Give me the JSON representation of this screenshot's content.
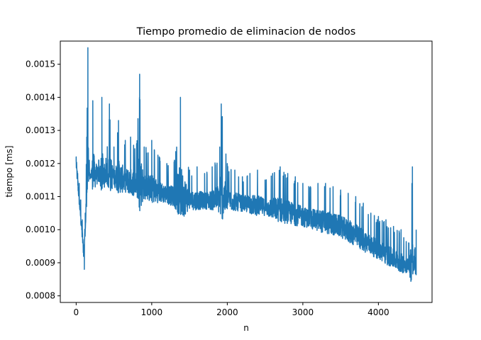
{
  "chart_data": {
    "type": "line",
    "title": "Tiempo promedio de eliminacion de nodos",
    "xlabel": "n",
    "ylabel": "tiempo [ms]",
    "xlim": [
      -210,
      4710
    ],
    "ylim": [
      0.00078,
      0.00157
    ],
    "xticks": [
      0,
      1000,
      2000,
      3000,
      4000
    ],
    "xtick_labels": [
      "0",
      "1000",
      "2000",
      "3000",
      "4000"
    ],
    "yticks": [
      0.0008,
      0.0009,
      0.001,
      0.0011,
      0.0012,
      0.0013,
      0.0014,
      0.0015
    ],
    "ytick_labels": [
      "0.0008",
      "0.0009",
      "0.0010",
      "0.0011",
      "0.0012",
      "0.0013",
      "0.0014",
      "0.0015"
    ],
    "grid": false,
    "series": [
      {
        "color": "#1f77b4",
        "x_range": [
          0,
          4500
        ],
        "points": [
          [
            0,
            0.00122
          ],
          [
            20,
            0.00117
          ],
          [
            40,
            0.00114
          ],
          [
            60,
            0.00109
          ],
          [
            80,
            0.00103
          ],
          [
            100,
            0.00094
          ],
          [
            108,
            0.00088
          ],
          [
            120,
            0.00105
          ],
          [
            140,
            0.00128
          ],
          [
            155,
            0.00155
          ],
          [
            175,
            0.0012
          ],
          [
            200,
            0.00118
          ],
          [
            220,
            0.00139
          ],
          [
            300,
            0.00121
          ],
          [
            340,
            0.0014
          ],
          [
            400,
            0.0012
          ],
          [
            440,
            0.00138
          ],
          [
            500,
            0.00125
          ],
          [
            560,
            0.00133
          ],
          [
            650,
            0.00127
          ],
          [
            720,
            0.00128
          ],
          [
            800,
            0.00126
          ],
          [
            840,
            0.00147
          ],
          [
            900,
            0.00125
          ],
          [
            1000,
            0.00127
          ],
          [
            1100,
            0.00122
          ],
          [
            1200,
            0.0012
          ],
          [
            1300,
            0.00121
          ],
          [
            1380,
            0.0014
          ],
          [
            1500,
            0.00118
          ],
          [
            1600,
            0.00119
          ],
          [
            1700,
            0.00117
          ],
          [
            1800,
            0.00119
          ],
          [
            1900,
            0.00125
          ],
          [
            1920,
            0.00138
          ],
          [
            2000,
            0.0012
          ],
          [
            2100,
            0.00118
          ],
          [
            2200,
            0.00116
          ],
          [
            2300,
            0.00117
          ],
          [
            2400,
            0.00118
          ],
          [
            2500,
            0.00115
          ],
          [
            2600,
            0.00117
          ],
          [
            2700,
            0.00119
          ],
          [
            2800,
            0.00117
          ],
          [
            2900,
            0.00116
          ],
          [
            3000,
            0.00114
          ],
          [
            3100,
            0.00113
          ],
          [
            3200,
            0.00114
          ],
          [
            3300,
            0.00114
          ],
          [
            3400,
            0.00113
          ],
          [
            3500,
            0.00112
          ],
          [
            3600,
            0.00111
          ],
          [
            3700,
            0.0011
          ],
          [
            3800,
            0.00108
          ],
          [
            3900,
            0.00105
          ],
          [
            4000,
            0.00104
          ],
          [
            4100,
            0.00103
          ],
          [
            4200,
            0.00101
          ],
          [
            4300,
            0.001
          ],
          [
            4400,
            0.00096
          ],
          [
            4450,
            0.00119
          ],
          [
            4470,
            0.00092
          ],
          [
            4500,
            0.001
          ]
        ],
        "baseline": [
          [
            0,
            0.0012
          ],
          [
            100,
            0.00093
          ],
          [
            160,
            0.00116
          ],
          [
            500,
            0.00115
          ],
          [
            1000,
            0.00111
          ],
          [
            1500,
            0.00108
          ],
          [
            2000,
            0.00108
          ],
          [
            2500,
            0.00106
          ],
          [
            3000,
            0.00103
          ],
          [
            3500,
            0.001
          ],
          [
            4000,
            0.00093
          ],
          [
            4300,
            0.00089
          ],
          [
            4480,
            0.00088
          ]
        ]
      }
    ]
  }
}
